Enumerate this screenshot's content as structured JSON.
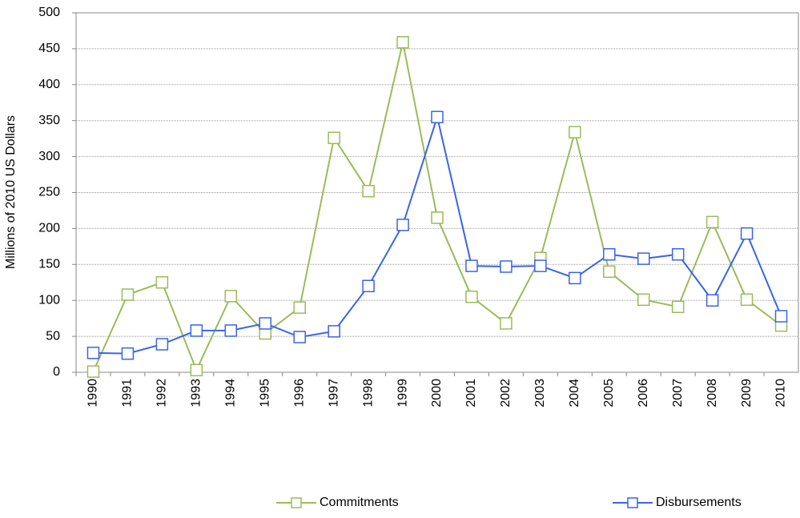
{
  "chart_data": {
    "type": "line",
    "y_label": "Millions of 2010 US Dollars",
    "categories": [
      "1990",
      "1991",
      "1992",
      "1993",
      "1994",
      "1995",
      "1996",
      "1997",
      "1998",
      "1999",
      "2000",
      "2001",
      "2002",
      "2003",
      "2004",
      "2005",
      "2006",
      "2007",
      "2008",
      "2009",
      "2010"
    ],
    "series": [
      {
        "name": "Commitments",
        "color": "#9bbb59",
        "values": [
          1,
          108,
          125,
          3,
          106,
          54,
          90,
          326,
          252,
          459,
          215,
          105,
          68,
          159,
          334,
          140,
          101,
          91,
          209,
          101,
          65
        ]
      },
      {
        "name": "Disbursements",
        "color": "#3b64e8",
        "values": [
          27,
          26,
          39,
          58,
          58,
          68,
          49,
          57,
          120,
          205,
          355,
          148,
          147,
          148,
          131,
          164,
          158,
          164,
          100,
          193,
          78
        ]
      }
    ],
    "ylim": [
      0,
      500
    ],
    "yticks": [
      0,
      50,
      100,
      150,
      200,
      250,
      300,
      350,
      400,
      450,
      500
    ],
    "grid": true,
    "legend": "bottom"
  }
}
